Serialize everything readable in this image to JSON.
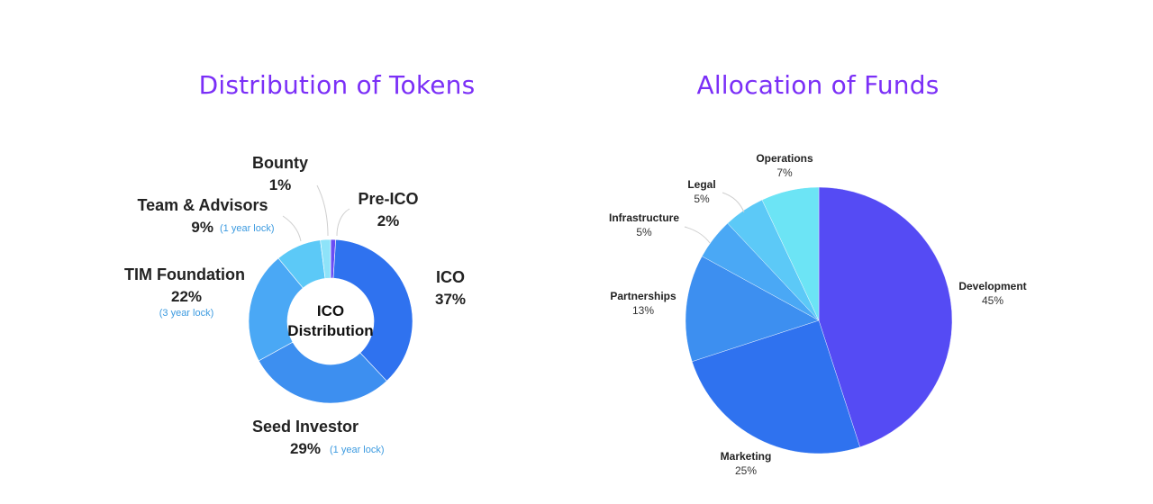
{
  "accent_color": "#7b2ff7",
  "left_title": "Distribution of Tokens",
  "right_title": "Allocation of Funds",
  "chart_data": [
    {
      "type": "donut",
      "title": "Distribution of Tokens",
      "center_label": [
        "ICO",
        "Distribution"
      ],
      "slices": [
        {
          "label": "Bounty",
          "value": 1,
          "pct_text": "1%",
          "color": "#6a4cf5"
        },
        {
          "label": "ICO",
          "value": 37,
          "pct_text": "37%",
          "color": "#2f72ef"
        },
        {
          "label": "Seed Investor",
          "value": 29,
          "pct_text": "29%",
          "note": "(1 year lock)",
          "color": "#3d8ff0"
        },
        {
          "label": "TIM Foundation",
          "value": 22,
          "pct_text": "22%",
          "note": "(3 year lock)",
          "color": "#4aa8f5"
        },
        {
          "label": "Team & Advisors",
          "value": 9,
          "pct_text": "9%",
          "note": "(1 year lock)",
          "color": "#5cc9f7"
        },
        {
          "label": "Pre-ICO",
          "value": 2,
          "pct_text": "2%",
          "color": "#8ee3f9"
        }
      ],
      "note_color": "#3d9be0",
      "label_color": "#222222"
    },
    {
      "type": "pie",
      "title": "Allocation of Funds",
      "slices": [
        {
          "label": "Development",
          "value": 45,
          "pct_text": "45%",
          "color": "#554bf4"
        },
        {
          "label": "Marketing",
          "value": 25,
          "pct_text": "25%",
          "color": "#2f72ef"
        },
        {
          "label": "Partnerships",
          "value": 13,
          "pct_text": "13%",
          "color": "#3d8ff0"
        },
        {
          "label": "Infrastructure",
          "value": 5,
          "pct_text": "5%",
          "color": "#4aa8f5"
        },
        {
          "label": "Legal",
          "value": 5,
          "pct_text": "5%",
          "color": "#5cc9f7"
        },
        {
          "label": "Operations",
          "value": 7,
          "pct_text": "7%",
          "color": "#6ce4f5"
        }
      ],
      "label_color": "#222222"
    }
  ]
}
